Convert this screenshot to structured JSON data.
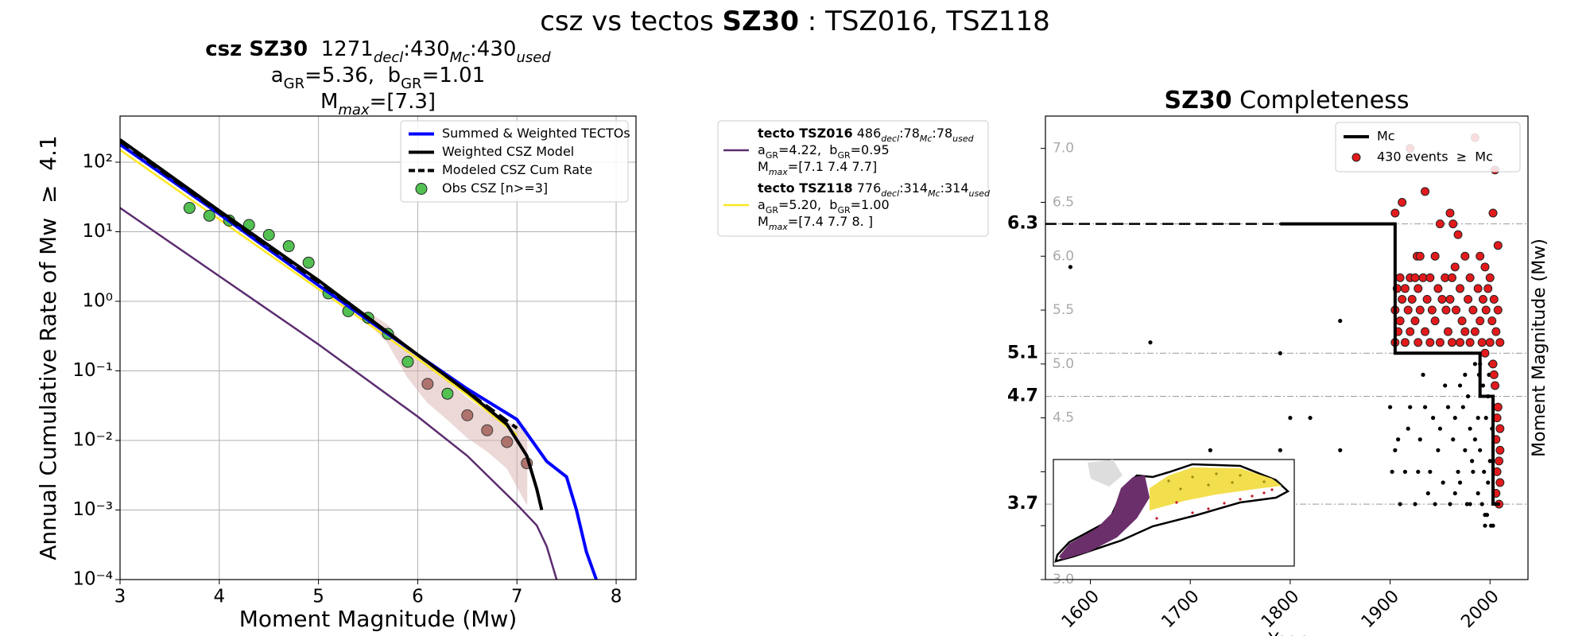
{
  "title_segments": [
    {
      "text": "csz vs tectos "
    },
    {
      "text": "SZ30",
      "style": "bold"
    },
    {
      "text": " : TSZ016, TSZ118"
    }
  ],
  "tecto_legend": [
    {
      "color": "#5b2c6f",
      "lines": [
        [
          {
            "text": "tecto TSZ016",
            "style": "bold"
          },
          {
            "text": " 486"
          },
          {
            "text": "decl",
            "style": "sub_italic"
          },
          {
            "text": ":78"
          },
          {
            "text": "Mc",
            "style": "sub_italic"
          },
          {
            "text": ":78"
          },
          {
            "text": "used",
            "style": "sub_italic"
          }
        ],
        [
          {
            "text": "a"
          },
          {
            "text": "GR",
            "style": "sub"
          },
          {
            "text": "=4.22,  b"
          },
          {
            "text": "GR",
            "style": "sub"
          },
          {
            "text": "=0.95"
          }
        ],
        [
          {
            "text": "M"
          },
          {
            "text": "max",
            "style": "sub_italic"
          },
          {
            "text": "=[7.1 7.4 7.7]"
          }
        ]
      ]
    },
    {
      "color": "#fde725",
      "lines": [
        [
          {
            "text": "tecto TSZ118",
            "style": "bold"
          },
          {
            "text": " 776"
          },
          {
            "text": "decl",
            "style": "sub_italic"
          },
          {
            "text": ":314"
          },
          {
            "text": "Mc",
            "style": "sub_italic"
          },
          {
            "text": ":314"
          },
          {
            "text": "used",
            "style": "sub_italic"
          }
        ],
        [
          {
            "text": "a"
          },
          {
            "text": "GR",
            "style": "sub"
          },
          {
            "text": "=5.20,  b"
          },
          {
            "text": "GR",
            "style": "sub"
          },
          {
            "text": "=1.00"
          }
        ],
        [
          {
            "text": "M"
          },
          {
            "text": "max",
            "style": "sub_italic"
          },
          {
            "text": "=[7.4 7.7 8. ]"
          }
        ]
      ]
    }
  ],
  "chart_data": [
    {
      "type": "line",
      "title_lines": [
        [
          {
            "text": "csz SZ30",
            "style": "bold"
          },
          {
            "text": "  1271"
          },
          {
            "text": "decl",
            "style": "sub_italic"
          },
          {
            "text": ":430"
          },
          {
            "text": "Mc",
            "style": "sub_italic"
          },
          {
            "text": ":430"
          },
          {
            "text": "used",
            "style": "sub_italic"
          }
        ],
        [
          {
            "text": "a"
          },
          {
            "text": "GR",
            "style": "sub"
          },
          {
            "text": "=5.36,  b"
          },
          {
            "text": "GR",
            "style": "sub"
          },
          {
            "text": "=1.01"
          }
        ],
        [
          {
            "text": "M"
          },
          {
            "text": "max",
            "style": "sub_italic"
          },
          {
            "text": "=[7.3]"
          }
        ]
      ],
      "xlabel": "Moment Magnitude (Mw)",
      "ylabel": "Annual Cumulative Rate of Mw  ≥  4.1",
      "xlim": [
        3,
        8.2
      ],
      "ylim": [
        0.0001,
        460
      ],
      "log_y": true,
      "xticks": [
        3,
        4,
        5,
        6,
        7,
        8
      ],
      "yticks": [
        {
          "value": 0.0001,
          "label": "10⁻⁴"
        },
        {
          "value": 0.001,
          "label": "10⁻³"
        },
        {
          "value": 0.01,
          "label": "10⁻²"
        },
        {
          "value": 0.1,
          "label": "10⁻¹"
        },
        {
          "value": 1,
          "label": "10⁰"
        },
        {
          "value": 10,
          "label": "10¹"
        },
        {
          "value": 100,
          "label": "10²"
        }
      ],
      "grid": true,
      "legend": "upper right",
      "series": [
        {
          "type": "band",
          "color": "#d9b3b0",
          "x": [
            5.5,
            5.7,
            5.9,
            6.1,
            6.3,
            6.5,
            6.7,
            6.9,
            7.1
          ],
          "upper": [
            0.7,
            0.45,
            0.2,
            0.12,
            0.07,
            0.04,
            0.025,
            0.018,
            0.015
          ],
          "lower": [
            0.5,
            0.25,
            0.08,
            0.035,
            0.02,
            0.011,
            0.007,
            0.004,
            0.0012
          ]
        },
        {
          "type": "line",
          "color": "#5b2c6f",
          "x": [
            3,
            4,
            5,
            6,
            6.5,
            7,
            7.2,
            7.3,
            7.4
          ],
          "values": [
            22,
            2.3,
            0.24,
            0.022,
            0.006,
            0.0012,
            0.0006,
            0.0003,
            0.0001
          ]
        },
        {
          "type": "line",
          "color": "#fde725",
          "x": [
            3,
            4,
            5,
            6,
            6.5,
            7
          ],
          "values": [
            150,
            15,
            1.5,
            0.15,
            0.045,
            0.012
          ]
        },
        {
          "name": "Obs CSZ [n>=3]",
          "type": "scatter",
          "color": "#52c152",
          "x": [
            3.7,
            3.9,
            4.1,
            4.3,
            4.5,
            4.7,
            4.9,
            5.1,
            5.3,
            5.5,
            5.7,
            5.9,
            6.3
          ],
          "values": [
            22,
            17,
            14.5,
            12.5,
            9,
            6.2,
            3.6,
            1.3,
            0.72,
            0.58,
            0.34,
            0.135,
            0.047
          ]
        },
        {
          "type": "scatter",
          "color": "#a5625b",
          "x": [
            6.1,
            6.5,
            6.7,
            6.9,
            7.1
          ],
          "values": [
            0.065,
            0.023,
            0.014,
            0.0095,
            0.0047
          ]
        },
        {
          "name": "Summed & Weighted TECTOs",
          "type": "line",
          "color": "#0000ff",
          "x": [
            3,
            4,
            5,
            6,
            6.5,
            7,
            7.3,
            7.5,
            7.6,
            7.7,
            7.8
          ],
          "values": [
            180,
            18,
            1.7,
            0.17,
            0.055,
            0.02,
            0.005,
            0.003,
            0.001,
            0.00025,
            0.0001
          ]
        },
        {
          "name": "Weighted CSZ Model",
          "type": "line",
          "color": "#000000",
          "x": [
            3,
            4,
            5,
            6,
            6.5,
            6.9,
            7.1,
            7.2,
            7.25
          ],
          "values": [
            210,
            20,
            2,
            0.17,
            0.05,
            0.017,
            0.006,
            0.002,
            0.001
          ]
        },
        {
          "name": "Modeled CSZ Cum Rate",
          "type": "line",
          "color": "#000000",
          "dash": true,
          "x": [
            3,
            4,
            5,
            6,
            6.5,
            7
          ],
          "values": [
            200,
            19,
            1.9,
            0.17,
            0.05,
            0.015
          ]
        }
      ]
    },
    {
      "type": "scatter",
      "title_segments": [
        {
          "text": "SZ30",
          "style": "bold"
        },
        {
          "text": " Completeness"
        }
      ],
      "xlabel": "Year",
      "ylabel": "Moment Magnitude (Mw)",
      "xlim": [
        1555,
        2038
      ],
      "ylim": [
        3,
        7.3
      ],
      "xticks": [
        1600,
        1700,
        1800,
        1900,
        2000
      ],
      "yticks": [
        {
          "value": 3,
          "label": "3.0"
        },
        {
          "value": 3.5,
          "label": "3.5"
        },
        {
          "value": 4,
          "label": "4.0"
        },
        {
          "value": 4.5,
          "label": "4.5"
        },
        {
          "value": 5,
          "label": "5.0"
        },
        {
          "value": 5.5,
          "label": "5.5"
        },
        {
          "value": 6,
          "label": "6.0"
        },
        {
          "value": 6.5,
          "label": "6.5"
        },
        {
          "value": 7,
          "label": "7.0"
        }
      ],
      "mc_ticks": [
        3.7,
        4.7,
        5.1,
        6.3
      ],
      "legend": "upper right",
      "series": [
        {
          "type": "scatter",
          "color": "#000000",
          "x": [
            1580,
            1660,
            1790,
            1850,
            1800,
            1820,
            1720,
            1790,
            1850,
            1900,
            1902,
            1905,
            1910,
            1915,
            1920,
            1925,
            1930,
            1935,
            1940,
            1945,
            1950,
            1955,
            1960,
            1965,
            1970,
            1975,
            1980,
            1985,
            1990,
            1995,
            2000,
            1908,
            1918,
            1928,
            1938,
            1948,
            1958,
            1968,
            1978,
            1988,
            1998,
            1933,
            1943,
            1953,
            1963,
            1973,
            1983,
            1993,
            2003,
            1995,
            1988,
            1998,
            2000,
            1985,
            1975,
            1965,
            1970,
            1980,
            1990,
            1996,
            1992,
            2002,
            1997,
            2001,
            1999,
            1994,
            1989,
            1982,
            1977
          ],
          "values": [
            5.9,
            5.2,
            5.1,
            5.4,
            4.5,
            4.5,
            4.2,
            4.2,
            4.2,
            4.6,
            4.0,
            4.2,
            3.7,
            4.0,
            4.6,
            3.7,
            4.3,
            4.6,
            4.0,
            3.7,
            4.4,
            4.8,
            3.7,
            4.5,
            3.9,
            4.9,
            3.7,
            4.3,
            5.0,
            3.6,
            4.1,
            4.3,
            4.4,
            4.0,
            3.8,
            4.2,
            4.6,
            4.0,
            4.7,
            4.5,
            3.9,
            4.9,
            4.5,
            3.9,
            4.3,
            4.6,
            4.0,
            4.8,
            3.5,
            3.5,
            3.8,
            4.7,
            5.0,
            5.0,
            4.2,
            3.8,
            4.8,
            4.4,
            4.2,
            4.5,
            3.7,
            4.4,
            3.6,
            3.5,
            4.9,
            4.0,
            4.9,
            4.1,
            3.7
          ]
        },
        {
          "name": "430 events  ≥  Mc",
          "type": "scatter",
          "color": "#e31a1c",
          "x": [
            1905,
            1912,
            1920,
            1935,
            1985,
            2005,
            2003,
            1960,
            1963,
            1950,
            1968,
            2008,
            1927,
            1930,
            1945,
            1975,
            1990,
            1995,
            1965,
            1910,
            1920,
            1925,
            1933,
            1940,
            1955,
            1962,
            1980,
            2000,
            1907,
            1915,
            1928,
            1948,
            1970,
            1988,
            1998,
            1912,
            1922,
            1937,
            1952,
            1960,
            1978,
            1993,
            2004,
            1905,
            1918,
            1930,
            1942,
            1956,
            1966,
            1983,
            1996,
            2008,
            1910,
            1925,
            1945,
            1972,
            1990,
            2002,
            1908,
            1920,
            1935,
            1958,
            1975,
            1985,
            2006,
            1905,
            1915,
            1928,
            1940,
            1950,
            1962,
            1970,
            1980,
            1992,
            2000,
            2010,
            1995,
            2003,
            2005,
            2008,
            2010,
            2006,
            2009,
            2007,
            2010,
            2006,
            2009,
            2004,
            2007,
            2010
          ],
          "values": [
            6.4,
            6.5,
            7.0,
            6.6,
            7.1,
            6.8,
            6.4,
            6.4,
            6.3,
            6.3,
            6.2,
            6.1,
            6.0,
            6.0,
            6.0,
            6.0,
            6.0,
            5.9,
            5.9,
            5.8,
            5.8,
            5.8,
            5.8,
            5.8,
            5.8,
            5.8,
            5.8,
            5.8,
            5.7,
            5.7,
            5.7,
            5.7,
            5.7,
            5.7,
            5.7,
            5.6,
            5.6,
            5.6,
            5.6,
            5.6,
            5.6,
            5.6,
            5.6,
            5.5,
            5.5,
            5.5,
            5.5,
            5.5,
            5.5,
            5.5,
            5.5,
            5.5,
            5.4,
            5.4,
            5.4,
            5.4,
            5.4,
            5.4,
            5.3,
            5.3,
            5.3,
            5.3,
            5.3,
            5.3,
            5.3,
            5.2,
            5.2,
            5.2,
            5.2,
            5.2,
            5.2,
            5.2,
            5.2,
            5.2,
            5.2,
            5.2,
            5.1,
            5.0,
            4.8,
            4.6,
            4.4,
            4.3,
            4.1,
            4.0,
            3.9,
            3.8,
            3.7,
            4.9,
            4.5,
            4.2
          ]
        },
        {
          "type": "line",
          "color": "#000000",
          "dash": true,
          "x": [
            1555,
            1790
          ],
          "values": [
            6.3,
            6.3
          ]
        },
        {
          "name": "Mc",
          "type": "line",
          "color": "#000000",
          "x": [
            1790,
            1905,
            1905,
            1990,
            1990,
            2003,
            2003,
            2010
          ],
          "values": [
            6.3,
            6.3,
            5.1,
            5.1,
            4.7,
            4.7,
            3.7,
            3.7
          ]
        }
      ]
    }
  ]
}
